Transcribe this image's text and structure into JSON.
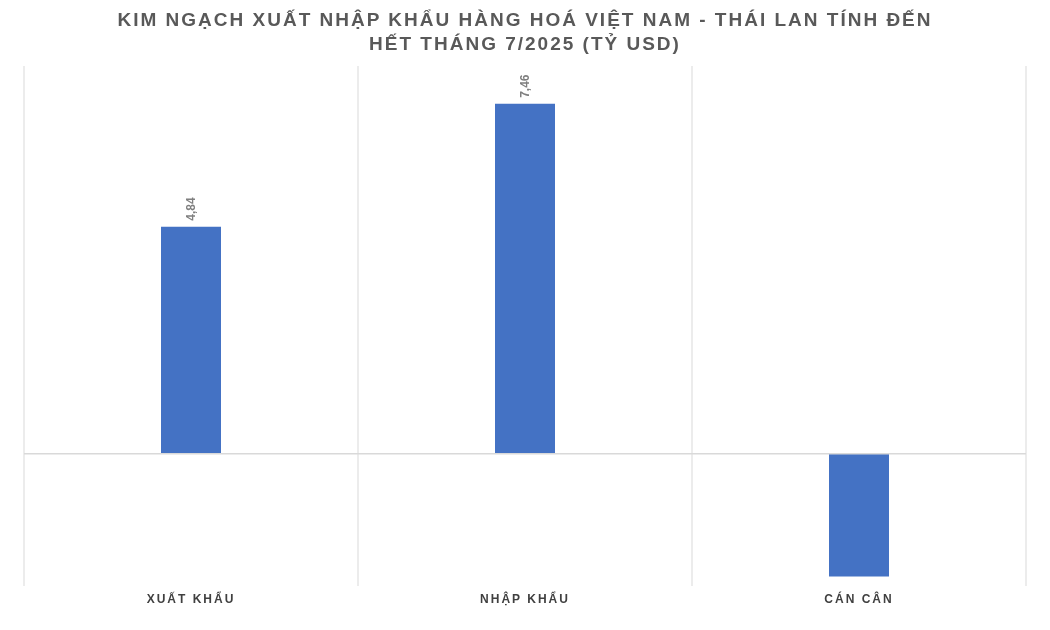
{
  "chart_data": {
    "type": "bar",
    "title": "KIM NGẠCH XUẤT NHẬP KHẨU HÀNG HOÁ VIỆT NAM - THÁI LAN TÍNH ĐẾN HẾT THÁNG 7/2025  (TỶ USD)",
    "categories": [
      "XUẤT KHẨU",
      "NHẬP KHẨU",
      "CÁN CÂN"
    ],
    "values": [
      4.84,
      7.46,
      -2.62
    ],
    "value_labels": [
      "4,84",
      "7,46",
      null
    ],
    "color": "#4472c4",
    "grid": "x"
  }
}
